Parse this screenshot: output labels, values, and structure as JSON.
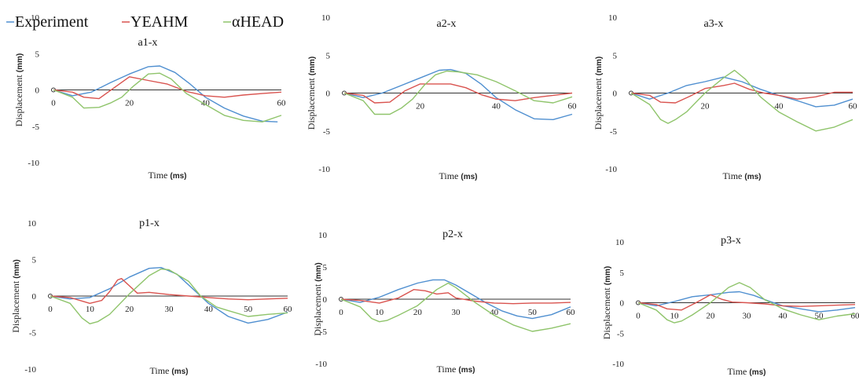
{
  "legend": [
    {
      "name": "Experiment",
      "color": "#4f8fd0"
    },
    {
      "name": "YEAHM",
      "color": "#d9534f"
    },
    {
      "name": "αHEAD",
      "color": "#8fc46b"
    }
  ],
  "colors": {
    "axis": "#333333",
    "Experiment": "#4f8fd0",
    "YEAHM": "#d9534f",
    "αHEAD": "#8fc46b"
  },
  "chart_data": [
    {
      "id": "a1",
      "type": "line",
      "title": "a1-x",
      "xlabel": "Time",
      "xlabel_unit": "(ms)",
      "ylabel": "Displacement",
      "ylabel_unit": "(mm)",
      "xlim": [
        0,
        60
      ],
      "ylim": [
        -10,
        10
      ],
      "xticks": [
        {
          "v": 0,
          "label": "0"
        },
        {
          "v": 20,
          "label": "20"
        },
        {
          "v": 40,
          "label": "40"
        },
        {
          "v": 60,
          "label": "60"
        }
      ],
      "yticks": [
        {
          "v": 10,
          "label": "10"
        },
        {
          "v": 5,
          "label": "5"
        },
        {
          "v": 0,
          "label": "0"
        },
        {
          "v": -5,
          "label": "-5"
        },
        {
          "v": -10,
          "label": "-10"
        }
      ],
      "series": [
        {
          "name": "Experiment",
          "x": [
            0,
            5,
            10,
            15,
            20,
            25,
            28,
            32,
            36,
            40,
            45,
            50,
            55,
            59
          ],
          "y": [
            0,
            -0.8,
            -0.3,
            1,
            2.2,
            3.2,
            3.3,
            2.4,
            0.8,
            -1,
            -2.5,
            -3.6,
            -4.3,
            -4.4
          ]
        },
        {
          "name": "YEAHM",
          "x": [
            0,
            5,
            8,
            12,
            16,
            20,
            25,
            30,
            35,
            40,
            45,
            50,
            55,
            60
          ],
          "y": [
            0,
            -0.3,
            -1,
            -1.2,
            0.3,
            1.8,
            1.3,
            0.8,
            -0.2,
            -0.8,
            -1,
            -0.7,
            -0.5,
            -0.3
          ]
        },
        {
          "name": "αHEAD",
          "x": [
            0,
            5,
            8,
            12,
            15,
            18,
            21,
            25,
            28,
            31,
            35,
            40,
            45,
            50,
            55,
            60
          ],
          "y": [
            0,
            -1,
            -2.5,
            -2.4,
            -1.8,
            -1,
            0.5,
            2.2,
            2.3,
            1.5,
            -0.5,
            -2,
            -3.5,
            -4.2,
            -4.4,
            -3.5
          ]
        }
      ]
    },
    {
      "id": "a2",
      "type": "line",
      "title": "a2-x",
      "xlabel": "Time",
      "xlabel_unit": "(ms)",
      "ylabel": "Displacement",
      "ylabel_unit": "(mm)",
      "xlim": [
        0,
        60
      ],
      "ylim": [
        -10,
        10
      ],
      "xticks": [
        {
          "v": 20,
          "label": "20"
        },
        {
          "v": 40,
          "label": "40"
        },
        {
          "v": 60,
          "label": "60"
        }
      ],
      "yticks": [
        {
          "v": 10,
          "label": "10"
        },
        {
          "v": 5,
          "label": "5"
        },
        {
          "v": 0,
          "label": "0"
        },
        {
          "v": -5,
          "label": "-5"
        },
        {
          "v": -10,
          "label": "-10"
        }
      ],
      "series": [
        {
          "name": "Experiment",
          "x": [
            0,
            5,
            10,
            15,
            20,
            25,
            28,
            32,
            36,
            40,
            45,
            50,
            55,
            60
          ],
          "y": [
            0,
            -0.6,
            0,
            1,
            2,
            3,
            3.1,
            2.6,
            1.2,
            -0.6,
            -2.2,
            -3.4,
            -3.5,
            -2.8
          ]
        },
        {
          "name": "YEAHM",
          "x": [
            0,
            5,
            8,
            12,
            16,
            20,
            24,
            28,
            32,
            36,
            40,
            45,
            50,
            55,
            60
          ],
          "y": [
            0,
            -0.3,
            -1.3,
            -1.2,
            0.3,
            1.2,
            1.2,
            1.2,
            0.7,
            -0.2,
            -0.8,
            -1,
            -0.6,
            -0.3,
            0
          ]
        },
        {
          "name": "αHEAD",
          "x": [
            0,
            5,
            8,
            12,
            15,
            18,
            21,
            24,
            27,
            30,
            35,
            40,
            45,
            50,
            55,
            60
          ],
          "y": [
            0,
            -1,
            -2.8,
            -2.8,
            -2,
            -0.8,
            1,
            2.4,
            2.9,
            2.8,
            2.4,
            1.5,
            0.3,
            -1,
            -1.3,
            -0.5
          ]
        }
      ]
    },
    {
      "id": "a3",
      "type": "line",
      "title": "a3-x",
      "xlabel": "Time",
      "xlabel_unit": "(ms)",
      "ylabel": "Displacement",
      "ylabel_unit": "(mm)",
      "xlim": [
        0,
        60
      ],
      "ylim": [
        -10,
        10
      ],
      "xticks": [
        {
          "v": 20,
          "label": "20"
        },
        {
          "v": 40,
          "label": "40"
        },
        {
          "v": 60,
          "label": "60"
        }
      ],
      "yticks": [
        {
          "v": 10,
          "label": "10"
        },
        {
          "v": 5,
          "label": "5"
        },
        {
          "v": 0,
          "label": "0"
        },
        {
          "v": -5,
          "label": "-5"
        },
        {
          "v": -10,
          "label": "-10"
        }
      ],
      "series": [
        {
          "name": "Experiment",
          "x": [
            0,
            5,
            10,
            15,
            20,
            25,
            30,
            35,
            40,
            45,
            50,
            55,
            60
          ],
          "y": [
            0,
            -0.8,
            0,
            1,
            1.5,
            2.1,
            1.5,
            0.5,
            -0.3,
            -1,
            -1.8,
            -1.6,
            -0.8
          ]
        },
        {
          "name": "YEAHM",
          "x": [
            0,
            5,
            8,
            12,
            16,
            20,
            25,
            28,
            32,
            36,
            40,
            45,
            50,
            55,
            60
          ],
          "y": [
            0,
            -0.3,
            -1.2,
            -1.3,
            -0.4,
            0.6,
            1,
            1.3,
            0.5,
            0,
            -0.3,
            -0.8,
            -0.5,
            0.1,
            0.1
          ]
        },
        {
          "name": "αHEAD",
          "x": [
            0,
            5,
            8,
            10,
            12,
            15,
            20,
            25,
            28,
            31,
            35,
            40,
            45,
            50,
            55,
            60
          ],
          "y": [
            0,
            -1.5,
            -3.5,
            -4,
            -3.5,
            -2.5,
            0,
            2,
            3,
            1.8,
            -0.5,
            -2.5,
            -3.8,
            -5,
            -4.5,
            -3.5
          ]
        }
      ]
    },
    {
      "id": "p1",
      "type": "line",
      "title": "p1-x",
      "xlabel": "Time",
      "xlabel_unit": "(ms)",
      "ylabel": "Displacement",
      "ylabel_unit": "(mm)",
      "xlim": [
        0,
        60
      ],
      "ylim": [
        -10,
        10
      ],
      "xticks": [
        {
          "v": 0,
          "label": "0"
        },
        {
          "v": 10,
          "label": "10"
        },
        {
          "v": 20,
          "label": "20"
        },
        {
          "v": 30,
          "label": "30"
        },
        {
          "v": 40,
          "label": "40"
        },
        {
          "v": 50,
          "label": "50"
        },
        {
          "v": 60,
          "label": "60"
        }
      ],
      "yticks": [
        {
          "v": 10,
          "label": "10"
        },
        {
          "v": 5,
          "label": "5"
        },
        {
          "v": 0,
          "label": "0"
        },
        {
          "v": -5,
          "label": "-5"
        },
        {
          "v": -10,
          "label": "-10"
        }
      ],
      "series": [
        {
          "name": "Experiment",
          "x": [
            0,
            5,
            10,
            15,
            20,
            25,
            28,
            32,
            36,
            40,
            45,
            50,
            55,
            60
          ],
          "y": [
            0,
            -0.4,
            -0.2,
            1,
            2.6,
            3.8,
            3.9,
            3,
            1,
            -1,
            -2.8,
            -3.7,
            -3.2,
            -2.2
          ]
        },
        {
          "name": "YEAHM",
          "x": [
            0,
            5,
            10,
            13,
            15,
            17,
            18,
            20,
            22,
            25,
            30,
            35,
            40,
            45,
            50,
            55,
            60
          ],
          "y": [
            0,
            -0.2,
            -1,
            -0.6,
            0.6,
            2.2,
            2.4,
            1.4,
            0.4,
            0.5,
            0.2,
            0,
            -0.2,
            -0.4,
            -0.5,
            -0.4,
            -0.3
          ]
        },
        {
          "name": "αHEAD",
          "x": [
            0,
            5,
            8,
            10,
            12,
            15,
            20,
            25,
            28,
            30,
            35,
            38,
            42,
            45,
            50,
            55,
            60
          ],
          "y": [
            0,
            -1,
            -3,
            -3.8,
            -3.5,
            -2.5,
            0.3,
            2.8,
            3.7,
            3.6,
            2,
            0,
            -1.5,
            -2,
            -2.8,
            -2.5,
            -2.3
          ]
        }
      ]
    },
    {
      "id": "p2",
      "type": "line",
      "title": "p2-x",
      "xlabel": "Time",
      "xlabel_unit": "(ms)",
      "ylabel": "Displacement",
      "ylabel_unit": "(mm)",
      "xlim": [
        0,
        60
      ],
      "ylim": [
        -10,
        10
      ],
      "xticks": [
        {
          "v": 0,
          "label": "0"
        },
        {
          "v": 10,
          "label": "10"
        },
        {
          "v": 20,
          "label": "20"
        },
        {
          "v": 30,
          "label": "30"
        },
        {
          "v": 40,
          "label": "40"
        },
        {
          "v": 50,
          "label": "50"
        },
        {
          "v": 60,
          "label": "60"
        }
      ],
      "yticks": [
        {
          "v": 10,
          "label": "10"
        },
        {
          "v": 5,
          "label": "5"
        },
        {
          "v": 0,
          "label": "0"
        },
        {
          "v": -5,
          "label": "-5"
        },
        {
          "v": -10,
          "label": "-10"
        }
      ],
      "series": [
        {
          "name": "Experiment",
          "x": [
            0,
            5,
            10,
            15,
            20,
            24,
            27,
            30,
            34,
            38,
            42,
            46,
            50,
            55,
            60
          ],
          "y": [
            0,
            -0.5,
            0.3,
            1.5,
            2.5,
            3,
            3,
            2.2,
            0.8,
            -0.6,
            -1.8,
            -2.6,
            -3,
            -2.4,
            -1.2
          ]
        },
        {
          "name": "YEAHM",
          "x": [
            0,
            5,
            10,
            15,
            19,
            22,
            25,
            28,
            30,
            35,
            40,
            45,
            50,
            55,
            60
          ],
          "y": [
            0,
            -0.2,
            -0.6,
            0.2,
            1.5,
            1.3,
            0.8,
            1,
            0.2,
            -0.3,
            -0.6,
            -0.7,
            -0.6,
            -0.6,
            -0.5
          ]
        },
        {
          "name": "αHEAD",
          "x": [
            0,
            5,
            8,
            10,
            12,
            15,
            20,
            25,
            28,
            30,
            35,
            40,
            45,
            50,
            55,
            60
          ],
          "y": [
            0,
            -1.2,
            -3,
            -3.5,
            -3.3,
            -2.5,
            -1,
            1.5,
            2.5,
            1.8,
            -0.5,
            -2.5,
            -4,
            -5,
            -4.5,
            -3.8
          ]
        }
      ]
    },
    {
      "id": "p3",
      "type": "line",
      "title": "p3-x",
      "xlabel": "Time",
      "xlabel_unit": "(ms)",
      "ylabel": "Displacement",
      "ylabel_unit": "(mm)",
      "xlim": [
        0,
        60
      ],
      "ylim": [
        -10,
        10
      ],
      "xticks": [
        {
          "v": 0,
          "label": "0"
        },
        {
          "v": 10,
          "label": "10"
        },
        {
          "v": 20,
          "label": "20"
        },
        {
          "v": 30,
          "label": "30"
        },
        {
          "v": 40,
          "label": "40"
        },
        {
          "v": 50,
          "label": "50"
        },
        {
          "v": 60,
          "label": "60"
        }
      ],
      "yticks": [
        {
          "v": 10,
          "label": "10"
        },
        {
          "v": 5,
          "label": "5"
        },
        {
          "v": 0,
          "label": "0"
        },
        {
          "v": -5,
          "label": "-5"
        },
        {
          "v": -10,
          "label": "-10"
        }
      ],
      "series": [
        {
          "name": "Experiment",
          "x": [
            0,
            5,
            10,
            15,
            20,
            25,
            28,
            32,
            36,
            40,
            45,
            50,
            55,
            60
          ],
          "y": [
            0,
            -0.5,
            0.2,
            1,
            1.3,
            1.7,
            1.8,
            1.2,
            0.3,
            -0.5,
            -1,
            -1.5,
            -1.2,
            -0.8
          ]
        },
        {
          "name": "YEAHM",
          "x": [
            0,
            5,
            8,
            12,
            16,
            20,
            23,
            26,
            30,
            35,
            40,
            45,
            50,
            55,
            60
          ],
          "y": [
            0,
            -0.3,
            -1,
            -1.2,
            0,
            1.3,
            0.6,
            0.1,
            0,
            -0.2,
            -0.5,
            -0.6,
            -0.5,
            -0.4,
            -0.3
          ]
        },
        {
          "name": "αHEAD",
          "x": [
            0,
            5,
            8,
            10,
            12,
            15,
            20,
            25,
            28,
            31,
            35,
            40,
            45,
            50,
            55,
            60
          ],
          "y": [
            0,
            -1.2,
            -2.8,
            -3.3,
            -3,
            -2,
            0,
            2.5,
            3.3,
            2.5,
            0.5,
            -1,
            -2,
            -2.8,
            -2.2,
            -1.8
          ]
        }
      ]
    }
  ]
}
